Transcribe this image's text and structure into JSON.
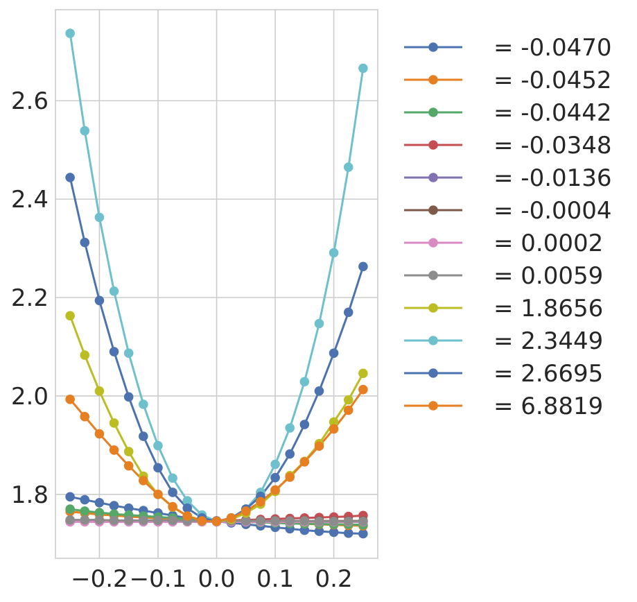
{
  "chart_data": {
    "type": "line",
    "title": "",
    "xlabel": "",
    "ylabel": "",
    "xlim": [
      -0.275,
      0.275
    ],
    "ylim": [
      1.67,
      2.785
    ],
    "grid": true,
    "legend_position": "outside-right",
    "x_ticks": [
      {
        "value": -0.2,
        "label": "−0.2"
      },
      {
        "value": -0.1,
        "label": "−0.1"
      },
      {
        "value": 0.0,
        "label": "0.0"
      },
      {
        "value": 0.1,
        "label": "0.1"
      },
      {
        "value": 0.2,
        "label": "0.2"
      }
    ],
    "y_ticks": [
      {
        "value": 1.8,
        "label": "1.8"
      },
      {
        "value": 2.0,
        "label": "2.0"
      },
      {
        "value": 2.2,
        "label": "2.2"
      },
      {
        "value": 2.4,
        "label": "2.4"
      },
      {
        "value": 2.6,
        "label": "2.6"
      }
    ],
    "x": [
      -0.25,
      -0.225,
      -0.2,
      -0.175,
      -0.15,
      -0.125,
      -0.1,
      -0.075,
      -0.05,
      -0.025,
      0.0,
      0.025,
      0.05,
      0.075,
      0.1,
      0.125,
      0.15,
      0.175,
      0.2,
      0.225,
      0.25
    ],
    "series": [
      {
        "label": "= -0.0470",
        "color": "#4c72b0",
        "values": [
          1.795,
          1.789,
          1.783,
          1.777,
          1.772,
          1.767,
          1.762,
          1.757,
          1.752,
          1.748,
          1.745,
          1.742,
          1.739,
          1.736,
          1.733,
          1.73,
          1.727,
          1.725,
          1.723,
          1.721,
          1.72
        ]
      },
      {
        "label": "= -0.0452",
        "color": "#e67e22",
        "values": [
          1.765,
          1.762,
          1.759,
          1.757,
          1.755,
          1.753,
          1.751,
          1.749,
          1.748,
          1.747,
          1.746,
          1.745,
          1.744,
          1.743,
          1.742,
          1.741,
          1.74,
          1.739,
          1.738,
          1.737,
          1.736
        ]
      },
      {
        "label": "= -0.0442",
        "color": "#55a868",
        "values": [
          1.77,
          1.766,
          1.763,
          1.76,
          1.758,
          1.756,
          1.754,
          1.752,
          1.75,
          1.748,
          1.746,
          1.745,
          1.744,
          1.743,
          1.742,
          1.741,
          1.74,
          1.74,
          1.739,
          1.739,
          1.738
        ]
      },
      {
        "label": "= -0.0348",
        "color": "#c44e52",
        "values": [
          1.745,
          1.745,
          1.745,
          1.745,
          1.745,
          1.745,
          1.745,
          1.745,
          1.745,
          1.745,
          1.746,
          1.747,
          1.748,
          1.749,
          1.75,
          1.751,
          1.752,
          1.753,
          1.754,
          1.755,
          1.757
        ]
      },
      {
        "label": "= -0.0136",
        "color": "#8172b3",
        "values": [
          1.745,
          1.745,
          1.745,
          1.745,
          1.745,
          1.745,
          1.745,
          1.745,
          1.745,
          1.745,
          1.745,
          1.745,
          1.745,
          1.745,
          1.745,
          1.745,
          1.745,
          1.745,
          1.745,
          1.745,
          1.745
        ]
      },
      {
        "label": "= -0.0004",
        "color": "#7f5a4a",
        "values": [
          1.746,
          1.746,
          1.746,
          1.746,
          1.746,
          1.746,
          1.746,
          1.746,
          1.746,
          1.746,
          1.746,
          1.746,
          1.746,
          1.746,
          1.746,
          1.746,
          1.746,
          1.746,
          1.746,
          1.746,
          1.746
        ]
      },
      {
        "label": "= 0.0002",
        "color": "#da8bc3",
        "values": [
          1.744,
          1.744,
          1.744,
          1.744,
          1.744,
          1.744,
          1.744,
          1.744,
          1.744,
          1.744,
          1.744,
          1.744,
          1.744,
          1.744,
          1.744,
          1.744,
          1.744,
          1.744,
          1.744,
          1.744,
          1.744
        ]
      },
      {
        "label": "= 0.0059",
        "color": "#8c8c8c",
        "values": [
          1.748,
          1.748,
          1.748,
          1.747,
          1.747,
          1.747,
          1.747,
          1.747,
          1.746,
          1.746,
          1.746,
          1.746,
          1.746,
          1.746,
          1.746,
          1.746,
          1.746,
          1.745,
          1.745,
          1.745,
          1.745
        ]
      },
      {
        "label": "= 1.8656",
        "color": "#bcbd22",
        "values": [
          2.163,
          2.083,
          2.01,
          1.945,
          1.887,
          1.837,
          1.8,
          1.774,
          1.756,
          1.748,
          1.745,
          1.749,
          1.762,
          1.78,
          1.806,
          1.838,
          1.867,
          1.903,
          1.947,
          1.992,
          2.046
        ]
      },
      {
        "label": "= 2.3449",
        "color": "#6ec1cc",
        "values": [
          2.737,
          2.539,
          2.363,
          2.213,
          2.087,
          1.983,
          1.899,
          1.833,
          1.787,
          1.758,
          1.745,
          1.752,
          1.77,
          1.804,
          1.861,
          1.935,
          2.029,
          2.147,
          2.291,
          2.465,
          2.666
        ]
      },
      {
        "label": "= 2.6695",
        "color": "#4c72b0",
        "values": [
          2.444,
          2.312,
          2.194,
          2.09,
          1.998,
          1.918,
          1.854,
          1.804,
          1.772,
          1.752,
          1.745,
          1.752,
          1.77,
          1.796,
          1.834,
          1.882,
          1.942,
          2.01,
          2.087,
          2.17,
          2.263
        ]
      },
      {
        "label": "= 6.8819",
        "color": "#e67e22",
        "values": [
          1.993,
          1.958,
          1.923,
          1.89,
          1.858,
          1.828,
          1.8,
          1.775,
          1.756,
          1.746,
          1.745,
          1.752,
          1.766,
          1.785,
          1.809,
          1.835,
          1.866,
          1.898,
          1.933,
          1.971,
          2.013
        ]
      }
    ]
  }
}
